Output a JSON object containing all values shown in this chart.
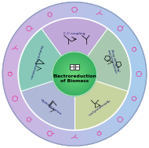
{
  "title": "Electroreduction\nof Biomass",
  "outer_bg_color": "#b8d0e8",
  "outer_bg_color2": "#d0b8d8",
  "white_ring_color": "#f5f5f5",
  "section_colors": [
    "#c0a8d8",
    "#a8c8b0",
    "#c8d4a0",
    "#b0b8d8",
    "#88c8b8"
  ],
  "section_starts": [
    54,
    -18,
    -90,
    -162,
    -234
  ],
  "section_labels": [
    "C-C coupling",
    "Ring-opening/\ntransformation",
    "Hydrogenolysis",
    "Hydrogenation",
    "Reductive amination"
  ],
  "label_angles": [
    90,
    18,
    -54,
    -126,
    -198
  ],
  "center_color1": "#38b060",
  "center_color2": "#60cc90",
  "center_text": "Electroreduction\nof Biomass",
  "pink_color": "#e040a0",
  "dark_blue": "#1a1a6a",
  "outer_r": 0.97,
  "white_r": 0.76,
  "center_r": 0.3,
  "label_r": 0.55
}
